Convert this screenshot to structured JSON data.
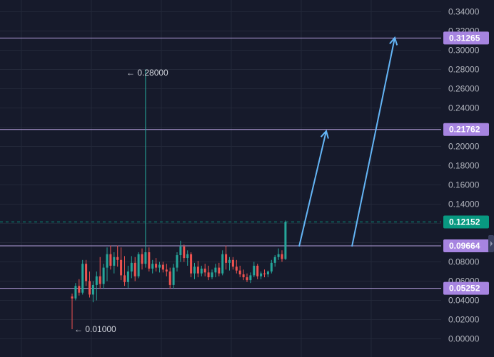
{
  "chart_data": {
    "type": "candlestick",
    "ylim": [
      0,
      0.35
    ],
    "y_ticks": [
      "0.34000",
      "0.32000",
      "0.30000",
      "0.28000",
      "0.26000",
      "0.24000",
      "0.22000",
      "0.20000",
      "0.18000",
      "0.16000",
      "0.14000",
      "0.12000",
      "0.10000",
      "0.08000",
      "0.06000",
      "0.04000",
      "0.02000",
      "0.00000"
    ],
    "horizontal_levels": [
      {
        "value": 0.31265,
        "label": "0.31265"
      },
      {
        "value": 0.21762,
        "label": "0.21762"
      },
      {
        "value": 0.09664,
        "label": "0.09664"
      },
      {
        "value": 0.05252,
        "label": "0.05252"
      }
    ],
    "current_price": {
      "value": 0.12152,
      "label": "0.12152"
    },
    "annotations": {
      "high": "← 0.28000",
      "low": "← 0.01000"
    },
    "candles": [
      [
        0.044,
        0.047,
        0.01,
        0.042
      ],
      [
        0.042,
        0.058,
        0.04,
        0.055
      ],
      [
        0.055,
        0.062,
        0.045,
        0.048
      ],
      [
        0.048,
        0.082,
        0.046,
        0.078
      ],
      [
        0.078,
        0.082,
        0.055,
        0.06
      ],
      [
        0.06,
        0.07,
        0.043,
        0.046
      ],
      [
        0.046,
        0.06,
        0.038,
        0.056
      ],
      [
        0.056,
        0.07,
        0.04,
        0.065
      ],
      [
        0.065,
        0.085,
        0.052,
        0.057
      ],
      [
        0.057,
        0.078,
        0.052,
        0.074
      ],
      [
        0.074,
        0.095,
        0.06,
        0.088
      ],
      [
        0.088,
        0.097,
        0.072,
        0.076
      ],
      [
        0.076,
        0.09,
        0.068,
        0.085
      ],
      [
        0.085,
        0.097,
        0.075,
        0.082
      ],
      [
        0.082,
        0.095,
        0.061,
        0.066
      ],
      [
        0.066,
        0.086,
        0.055,
        0.059
      ],
      [
        0.059,
        0.076,
        0.053,
        0.07
      ],
      [
        0.07,
        0.086,
        0.063,
        0.079
      ],
      [
        0.079,
        0.085,
        0.06,
        0.065
      ],
      [
        0.065,
        0.09,
        0.063,
        0.088
      ],
      [
        0.088,
        0.094,
        0.072,
        0.078
      ],
      [
        0.078,
        0.28,
        0.074,
        0.09
      ],
      [
        0.09,
        0.095,
        0.07,
        0.073
      ],
      [
        0.073,
        0.082,
        0.068,
        0.078
      ],
      [
        0.078,
        0.084,
        0.07,
        0.074
      ],
      [
        0.074,
        0.08,
        0.069,
        0.077
      ],
      [
        0.077,
        0.08,
        0.069,
        0.072
      ],
      [
        0.072,
        0.078,
        0.065,
        0.07
      ],
      [
        0.07,
        0.074,
        0.052,
        0.056
      ],
      [
        0.056,
        0.078,
        0.052,
        0.074
      ],
      [
        0.074,
        0.09,
        0.07,
        0.087
      ],
      [
        0.087,
        0.102,
        0.08,
        0.096
      ],
      [
        0.096,
        0.098,
        0.08,
        0.084
      ],
      [
        0.084,
        0.092,
        0.076,
        0.088
      ],
      [
        0.088,
        0.09,
        0.064,
        0.068
      ],
      [
        0.068,
        0.079,
        0.062,
        0.075
      ],
      [
        0.075,
        0.081,
        0.064,
        0.068
      ],
      [
        0.068,
        0.076,
        0.065,
        0.073
      ],
      [
        0.073,
        0.078,
        0.065,
        0.069
      ],
      [
        0.069,
        0.076,
        0.061,
        0.064
      ],
      [
        0.064,
        0.072,
        0.062,
        0.069
      ],
      [
        0.069,
        0.078,
        0.064,
        0.074
      ],
      [
        0.074,
        0.079,
        0.065,
        0.068
      ],
      [
        0.068,
        0.092,
        0.066,
        0.088
      ],
      [
        0.088,
        0.097,
        0.072,
        0.079
      ],
      [
        0.079,
        0.085,
        0.071,
        0.082
      ],
      [
        0.082,
        0.085,
        0.072,
        0.075
      ],
      [
        0.075,
        0.082,
        0.068,
        0.071
      ],
      [
        0.071,
        0.076,
        0.064,
        0.067
      ],
      [
        0.067,
        0.072,
        0.061,
        0.064
      ],
      [
        0.064,
        0.068,
        0.059,
        0.061
      ],
      [
        0.061,
        0.069,
        0.058,
        0.066
      ],
      [
        0.066,
        0.08,
        0.064,
        0.076
      ],
      [
        0.076,
        0.078,
        0.062,
        0.065
      ],
      [
        0.065,
        0.07,
        0.062,
        0.068
      ],
      [
        0.068,
        0.072,
        0.064,
        0.067
      ],
      [
        0.067,
        0.071,
        0.064,
        0.07
      ],
      [
        0.07,
        0.082,
        0.068,
        0.079
      ],
      [
        0.079,
        0.087,
        0.075,
        0.085
      ],
      [
        0.085,
        0.094,
        0.082,
        0.088
      ],
      [
        0.088,
        0.092,
        0.08,
        0.083
      ],
      [
        0.083,
        0.123,
        0.082,
        0.1215
      ]
    ],
    "arrow_targets": [
      {
        "from": 0.096,
        "to": 0.216
      },
      {
        "from": 0.096,
        "to": 0.313
      }
    ],
    "colors": {
      "background": "#161a2b",
      "grid": "#232839",
      "up": "#26a69a",
      "down": "#ef5350",
      "level_line": "#b39ddb",
      "level_label_bg": "#a684e0",
      "current_price": "#089981",
      "arrow": "#64b5f6",
      "axis_text": "#b2b5be"
    }
  }
}
